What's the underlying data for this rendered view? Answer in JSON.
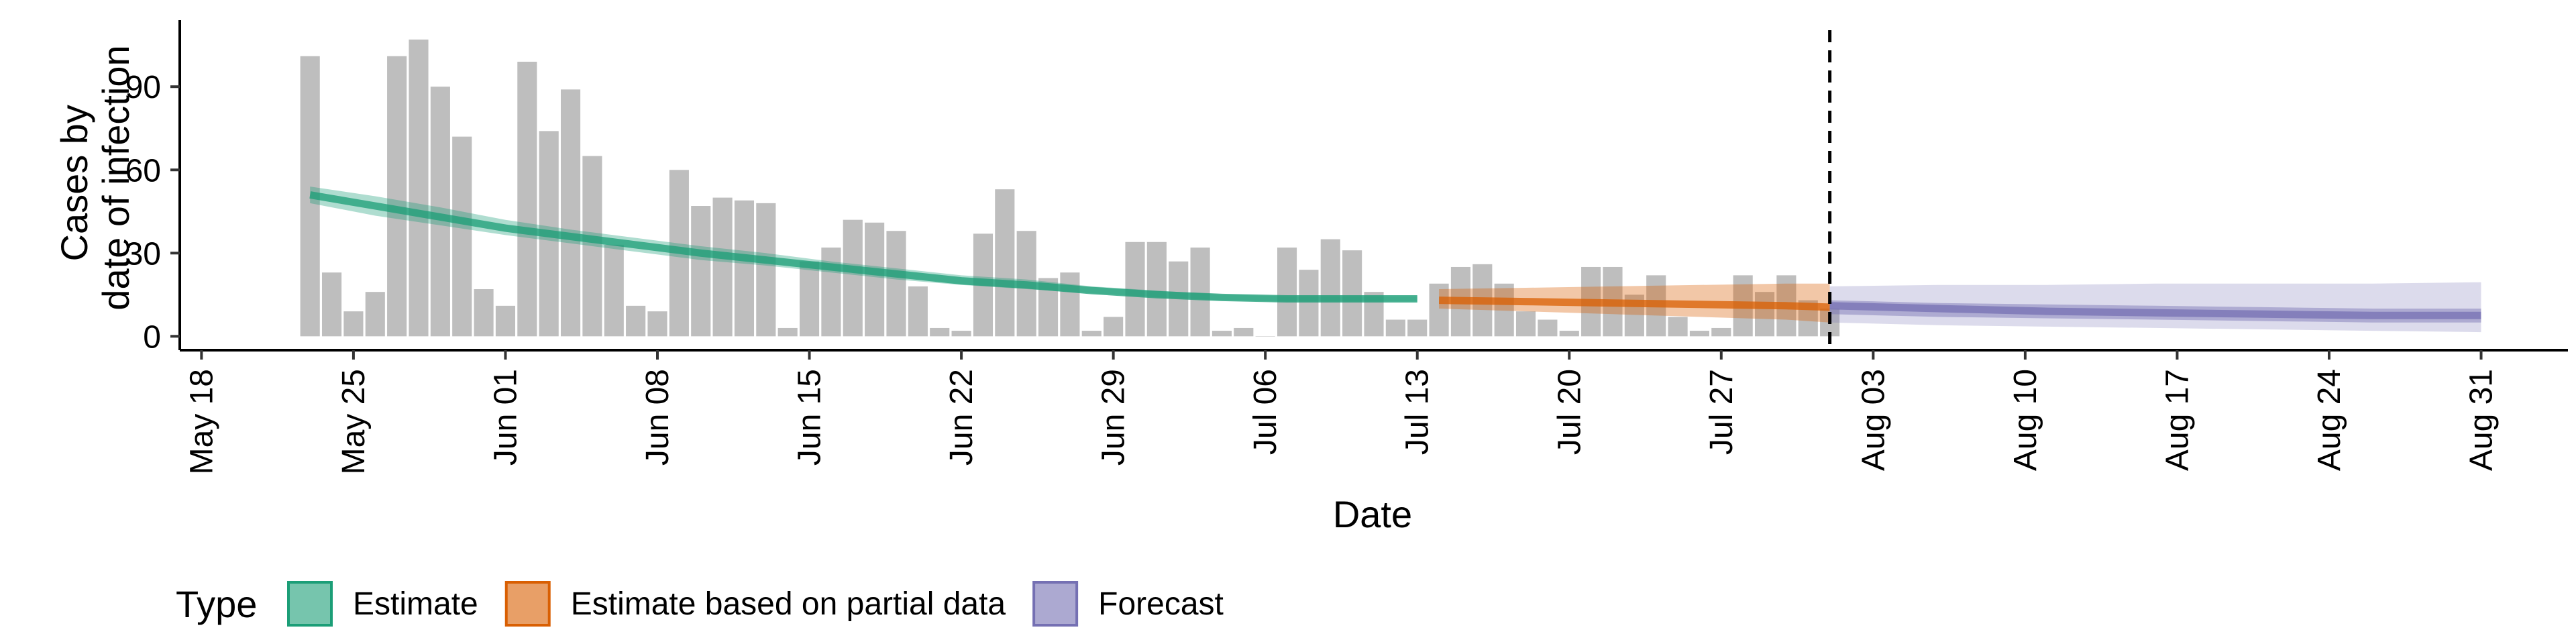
{
  "chart_data": {
    "type": "bar",
    "title": "",
    "xlabel": "Date",
    "ylabel_lines": [
      "Cases by",
      "date of infection"
    ],
    "x_tick_labels": [
      "May 18",
      "May 25",
      "Jun 01",
      "Jun 08",
      "Jun 15",
      "Jun 22",
      "Jun 29",
      "Jul 06",
      "Jul 13",
      "Jul 20",
      "Jul 27",
      "Aug 03",
      "Aug 10",
      "Aug 17",
      "Aug 24",
      "Aug 31"
    ],
    "x_tick_dates": [
      "2020-05-18",
      "2020-05-25",
      "2020-06-01",
      "2020-06-08",
      "2020-06-15",
      "2020-06-22",
      "2020-06-29",
      "2020-07-06",
      "2020-07-13",
      "2020-07-20",
      "2020-07-27",
      "2020-08-03",
      "2020-08-10",
      "2020-08-17",
      "2020-08-24",
      "2020-08-31"
    ],
    "y_ticks": [
      0,
      30,
      60,
      90
    ],
    "ylim": [
      -5,
      114
    ],
    "xlim": [
      "2020-05-17",
      "2020-09-04"
    ],
    "grid": false,
    "forecast_start": "2020-08-01",
    "bars": {
      "color": "#bebebe",
      "dates": [
        "2020-05-23",
        "2020-05-24",
        "2020-05-25",
        "2020-05-26",
        "2020-05-27",
        "2020-05-28",
        "2020-05-29",
        "2020-05-30",
        "2020-05-31",
        "2020-06-01",
        "2020-06-02",
        "2020-06-03",
        "2020-06-04",
        "2020-06-05",
        "2020-06-06",
        "2020-06-07",
        "2020-06-08",
        "2020-06-09",
        "2020-06-10",
        "2020-06-11",
        "2020-06-12",
        "2020-06-13",
        "2020-06-14",
        "2020-06-15",
        "2020-06-16",
        "2020-06-17",
        "2020-06-18",
        "2020-06-19",
        "2020-06-20",
        "2020-06-21",
        "2020-06-22",
        "2020-06-23",
        "2020-06-24",
        "2020-06-25",
        "2020-06-26",
        "2020-06-27",
        "2020-06-28",
        "2020-06-29",
        "2020-06-30",
        "2020-07-01",
        "2020-07-02",
        "2020-07-03",
        "2020-07-04",
        "2020-07-05",
        "2020-07-06",
        "2020-07-07",
        "2020-07-08",
        "2020-07-09",
        "2020-07-10",
        "2020-07-11",
        "2020-07-12",
        "2020-07-13",
        "2020-07-14",
        "2020-07-15",
        "2020-07-16",
        "2020-07-17",
        "2020-07-18",
        "2020-07-19",
        "2020-07-20",
        "2020-07-21",
        "2020-07-22",
        "2020-07-23",
        "2020-07-24",
        "2020-07-25",
        "2020-07-26",
        "2020-07-27",
        "2020-07-28",
        "2020-07-29",
        "2020-07-30",
        "2020-07-31",
        "2020-08-01"
      ],
      "values": [
        101,
        23,
        9,
        16,
        101,
        107,
        90,
        72,
        17,
        11,
        99,
        74,
        89,
        65,
        33,
        11,
        9,
        60,
        47,
        50,
        49,
        48,
        3,
        27,
        32,
        42,
        41,
        38,
        18,
        3,
        2,
        37,
        53,
        38,
        21,
        23,
        2,
        7,
        34,
        34,
        27,
        32,
        2,
        3,
        0,
        32,
        24,
        35,
        31,
        16,
        6,
        6,
        19,
        25,
        26,
        19,
        9,
        6,
        2,
        25,
        25,
        15,
        22,
        7,
        2,
        3,
        22,
        16,
        22,
        13,
        10
      ]
    },
    "series": [
      {
        "name": "Estimate",
        "color": "#1b9e77",
        "dates": [
          "2020-05-23",
          "2020-05-26",
          "2020-05-29",
          "2020-06-01",
          "2020-06-04",
          "2020-06-07",
          "2020-06-10",
          "2020-06-13",
          "2020-06-16",
          "2020-06-19",
          "2020-06-22",
          "2020-06-25",
          "2020-06-28",
          "2020-07-01",
          "2020-07-04",
          "2020-07-07",
          "2020-07-10",
          "2020-07-13"
        ],
        "median": [
          51,
          47,
          43,
          39,
          36,
          33,
          30,
          27.5,
          25,
          22.5,
          20,
          18.5,
          16.5,
          15,
          14,
          13.5,
          13.5,
          13.5
        ],
        "lower": [
          48,
          43.5,
          40,
          36.5,
          33.5,
          30.5,
          27.5,
          25.5,
          23,
          20.5,
          18.5,
          17,
          15.5,
          14,
          13,
          12.5,
          12.5,
          12.5
        ],
        "upper": [
          54,
          50.5,
          46.5,
          42,
          38.5,
          35.5,
          32.5,
          30,
          27,
          24.5,
          22,
          20.5,
          18,
          16.5,
          15,
          14.5,
          14.5,
          14.5
        ]
      },
      {
        "name": "Estimate based on partial data",
        "color": "#d95f02",
        "dates": [
          "2020-07-14",
          "2020-07-18",
          "2020-07-22",
          "2020-07-26",
          "2020-07-30",
          "2020-08-01"
        ],
        "median": [
          13,
          12.5,
          12,
          11.5,
          11,
          10.5
        ],
        "lower": [
          10,
          9,
          8,
          7,
          6,
          5
        ],
        "upper": [
          17,
          17.5,
          18,
          18.5,
          19,
          19
        ]
      },
      {
        "name": "Forecast",
        "color": "#7570b3",
        "dates": [
          "2020-08-01",
          "2020-08-06",
          "2020-08-11",
          "2020-08-16",
          "2020-08-21",
          "2020-08-26",
          "2020-08-31"
        ],
        "median": [
          11,
          10,
          9,
          8.5,
          8,
          7.5,
          7.5
        ],
        "lower_inner": [
          8,
          7,
          6.5,
          6,
          5.5,
          5,
          5
        ],
        "upper_inner": [
          13,
          12,
          11.5,
          11,
          10.5,
          10,
          10
        ],
        "lower_outer": [
          5,
          4,
          3.5,
          3,
          2.5,
          2,
          1.5
        ],
        "upper_outer": [
          18,
          18.5,
          18.5,
          19,
          19,
          19,
          19.5
        ]
      }
    ],
    "legend": {
      "title": "Type",
      "position": "bottom-left",
      "entries": [
        "Estimate",
        "Estimate based on partial data",
        "Forecast"
      ]
    }
  }
}
